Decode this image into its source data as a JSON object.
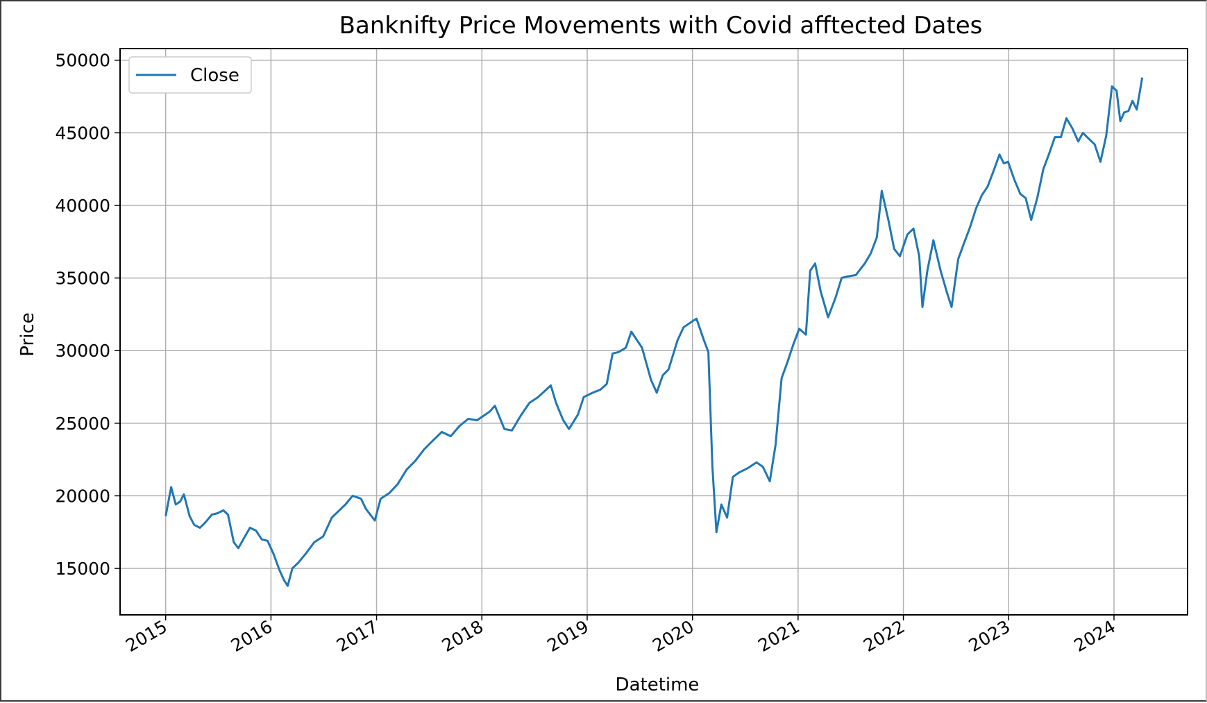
{
  "chart_data": {
    "type": "line",
    "title": "Banknifty Price Movements with Covid afftected Dates",
    "xlabel": "Datetime",
    "ylabel": "Price",
    "x_type": "date",
    "xlim": [
      "2014-07-27",
      "2024-09-12"
    ],
    "ylim": [
      11800,
      50800
    ],
    "grid": true,
    "legend": {
      "entries": [
        "Close"
      ],
      "placement": "top-left"
    },
    "xticks": [
      "2015",
      "2016",
      "2017",
      "2018",
      "2019",
      "2020",
      "2021",
      "2022",
      "2023",
      "2024"
    ],
    "yticks": [
      "15000",
      "20000",
      "25000",
      "30000",
      "35000",
      "40000",
      "45000",
      "50000"
    ],
    "colors": {
      "line": "#1f77b4",
      "grid": "#b0b0b0",
      "axes": "#000000"
    },
    "series": [
      {
        "name": "Close",
        "x": [
          "2015-01-01",
          "2015-01-20",
          "2015-02-05",
          "2015-02-20",
          "2015-03-05",
          "2015-03-25",
          "2015-04-10",
          "2015-04-30",
          "2015-05-20",
          "2015-06-10",
          "2015-06-30",
          "2015-07-20",
          "2015-08-05",
          "2015-08-25",
          "2015-09-10",
          "2015-09-30",
          "2015-10-20",
          "2015-11-10",
          "2015-11-30",
          "2015-12-20",
          "2016-01-10",
          "2016-01-30",
          "2016-02-15",
          "2016-02-28",
          "2016-03-15",
          "2016-04-05",
          "2016-04-30",
          "2016-05-30",
          "2016-06-30",
          "2016-07-30",
          "2016-08-30",
          "2016-09-15",
          "2016-10-10",
          "2016-11-08",
          "2016-11-25",
          "2016-12-26",
          "2017-01-15",
          "2017-02-15",
          "2017-03-15",
          "2017-04-15",
          "2017-05-15",
          "2017-06-15",
          "2017-07-15",
          "2017-08-15",
          "2017-09-15",
          "2017-10-15",
          "2017-11-15",
          "2017-12-15",
          "2018-01-28",
          "2018-02-15",
          "2018-03-20",
          "2018-04-15",
          "2018-05-15",
          "2018-06-15",
          "2018-07-15",
          "2018-08-28",
          "2018-09-15",
          "2018-10-10",
          "2018-10-30",
          "2018-11-30",
          "2018-12-20",
          "2019-01-20",
          "2019-02-15",
          "2019-03-10",
          "2019-03-30",
          "2019-04-20",
          "2019-05-15",
          "2019-06-03",
          "2019-06-20",
          "2019-07-10",
          "2019-08-10",
          "2019-08-30",
          "2019-09-20",
          "2019-10-10",
          "2019-11-10",
          "2019-12-01",
          "2019-12-30",
          "2020-01-15",
          "2020-02-10",
          "2020-02-25",
          "2020-03-10",
          "2020-03-24",
          "2020-04-10",
          "2020-04-30",
          "2020-05-20",
          "2020-06-10",
          "2020-07-10",
          "2020-08-10",
          "2020-09-01",
          "2020-09-25",
          "2020-10-15",
          "2020-11-05",
          "2020-11-25",
          "2020-12-15",
          "2021-01-05",
          "2021-01-28",
          "2021-02-12",
          "2021-03-01",
          "2021-03-20",
          "2021-04-15",
          "2021-05-10",
          "2021-06-01",
          "2021-06-20",
          "2021-07-20",
          "2021-08-20",
          "2021-09-10",
          "2021-10-01",
          "2021-10-18",
          "2021-11-10",
          "2021-11-30",
          "2021-12-20",
          "2022-01-15",
          "2022-02-05",
          "2022-02-25",
          "2022-03-08",
          "2022-03-25",
          "2022-04-15",
          "2022-05-10",
          "2022-06-01",
          "2022-06-17",
          "2022-07-10",
          "2022-08-01",
          "2022-08-20",
          "2022-09-10",
          "2022-09-30",
          "2022-10-20",
          "2022-11-10",
          "2022-11-30",
          "2022-12-15",
          "2022-12-30",
          "2023-01-20",
          "2023-02-10",
          "2023-03-01",
          "2023-03-20",
          "2023-04-10",
          "2023-05-01",
          "2023-05-20",
          "2023-06-10",
          "2023-07-01",
          "2023-07-20",
          "2023-08-10",
          "2023-08-30",
          "2023-09-15",
          "2023-10-05",
          "2023-10-26",
          "2023-11-15",
          "2023-12-05",
          "2023-12-25",
          "2024-01-10",
          "2024-01-23",
          "2024-02-05",
          "2024-02-20",
          "2024-03-05",
          "2024-03-20",
          "2024-04-08"
        ],
        "values": [
          18600,
          20600,
          19400,
          19600,
          20100,
          18600,
          18000,
          17800,
          18200,
          18700,
          18800,
          19000,
          18700,
          16800,
          16400,
          17100,
          17800,
          17600,
          17000,
          16900,
          16000,
          14900,
          14200,
          13800,
          15000,
          15400,
          16000,
          16800,
          17200,
          18500,
          19100,
          19400,
          20000,
          19800,
          19100,
          18300,
          19800,
          20200,
          20800,
          21800,
          22400,
          23200,
          23800,
          24400,
          24100,
          24800,
          25300,
          25200,
          25800,
          26200,
          24600,
          24500,
          25500,
          26400,
          26800,
          27600,
          26400,
          25200,
          24600,
          25600,
          26800,
          27100,
          27300,
          27700,
          29800,
          29900,
          30200,
          31300,
          30800,
          30200,
          28000,
          27100,
          28300,
          28700,
          30700,
          31600,
          32000,
          32200,
          30700,
          29900,
          22000,
          17500,
          19400,
          18500,
          21300,
          21600,
          21900,
          22300,
          22000,
          21000,
          23500,
          28100,
          29200,
          30400,
          31500,
          31100,
          35500,
          36000,
          34100,
          32300,
          33600,
          35000,
          35100,
          35200,
          36000,
          36700,
          37800,
          41000,
          39000,
          37000,
          36500,
          38000,
          38400,
          36500,
          33000,
          35500,
          37600,
          35500,
          34000,
          33000,
          36300,
          37500,
          38500,
          39800,
          40700,
          41300,
          42400,
          43500,
          42900,
          43000,
          41800,
          40800,
          40500,
          39000,
          40500,
          42500,
          43500,
          44700,
          44700,
          46000,
          45300,
          44400,
          45000,
          44600,
          44200,
          43000,
          44800,
          48200,
          47900,
          45800,
          46400,
          46500,
          47200,
          46600,
          48800
        ]
      }
    ]
  }
}
